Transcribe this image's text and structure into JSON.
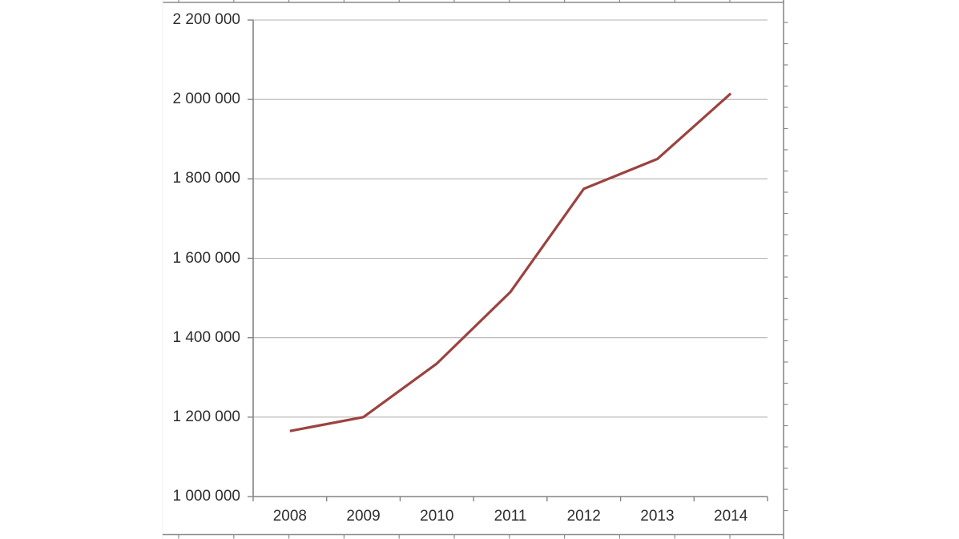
{
  "chart_data": {
    "type": "line",
    "title": "",
    "xlabel": "",
    "ylabel": "",
    "categories": [
      "2008",
      "2009",
      "2010",
      "2011",
      "2012",
      "2013",
      "2014"
    ],
    "values": [
      1165000,
      1200000,
      1335000,
      1515000,
      1775000,
      1850000,
      2015000
    ],
    "ylim": [
      1000000,
      2200000
    ],
    "ytick_step": 200000,
    "ytick_labels": [
      "1 000 000",
      "1 200 000",
      "1 400 000",
      "1 600 000",
      "1 800 000",
      "2 000 000",
      "2 200 000"
    ],
    "grid": true,
    "legend": "none",
    "colors": {
      "line": "#9B4340",
      "axis": "#848484",
      "grid": "#b3b3b3",
      "tick": "#848484",
      "label": "#2e2e2e",
      "cropped_neighbor_axes": "#8a8a8a"
    }
  }
}
